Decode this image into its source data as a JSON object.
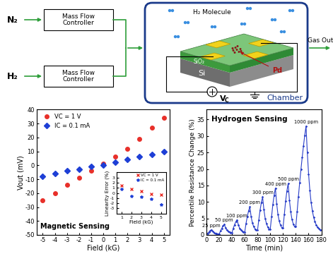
{
  "diagram": {
    "inlets": [
      {
        "gas": "N₂",
        "controller": "Mass Flow\nController"
      },
      {
        "gas": "H₂",
        "controller": "Mass Flow\nController"
      }
    ],
    "outlet": "Gas Out",
    "chamber": "Chamber",
    "molecule_label": "H₂ Molecule",
    "layers": {
      "substrate": "Si",
      "oxide": "SiO₂",
      "catalyst": "Pd"
    },
    "source": {
      "symbol": "V",
      "subscript": "C"
    }
  },
  "chart_data": [
    {
      "type": "scatter",
      "xlabel": "Field (kG)",
      "ylabel": "Vout (mV)",
      "annotation": "Magnetic Sensing",
      "xlim": [
        -5.5,
        5.5
      ],
      "xticks": [
        -5,
        -4,
        -3,
        -2,
        -1,
        0,
        1,
        2,
        3,
        4,
        5
      ],
      "ylim": [
        -50,
        40
      ],
      "yticks": [
        -50,
        -40,
        -30,
        -20,
        -10,
        0,
        10,
        20,
        30,
        40
      ],
      "legend": "upper left",
      "x": [
        -5,
        -4,
        -3,
        -2,
        -1,
        0,
        1,
        2,
        3,
        4,
        5
      ],
      "series": [
        {
          "name": "VC = 1 V",
          "color": "#e8302a",
          "marker": "circle",
          "values": [
            -25,
            -20,
            -14,
            -9,
            -4,
            1,
            6,
            12,
            19,
            27,
            34
          ]
        },
        {
          "name": "IC = 0.1 mA",
          "color": "#1e3fd6",
          "marker": "diamond",
          "values": [
            -8,
            -6,
            -4,
            -3,
            -1,
            0,
            2,
            4,
            6,
            8,
            10
          ]
        }
      ],
      "inset": {
        "type": "scatter",
        "xlabel": "Field (kG)",
        "ylabel": "Linearity Error (%)",
        "xlim": [
          0.5,
          5.5
        ],
        "xticks": [
          1,
          2,
          3,
          4,
          5
        ],
        "ylim": [
          -4,
          4
        ],
        "yticks": [
          -3,
          -2,
          -1,
          0,
          1,
          2,
          3
        ],
        "legend": "upper right",
        "x": [
          1,
          2,
          3,
          4,
          5
        ],
        "series": [
          {
            "name": "VC = 1 V",
            "color": "#e8302a",
            "marker": "x",
            "values": [
              1.5,
              0.7,
              0.3,
              -0.2,
              -0.3
            ]
          },
          {
            "name": "IC = 0.1 mA",
            "color": "#1e3fd6",
            "marker": "star",
            "values": [
              0.8,
              -0.6,
              -0.8,
              -1.2,
              -2.2
            ]
          }
        ]
      }
    },
    {
      "type": "line",
      "xlabel": "Time (min)",
      "ylabel": "Percentile Resistance Change (%)",
      "annotation": "Hydrogen Sensing",
      "xlim": [
        0,
        180
      ],
      "xticks": [
        0,
        20,
        40,
        60,
        80,
        100,
        120,
        140,
        160,
        180
      ],
      "ylim": [
        0,
        38
      ],
      "yticks": [
        0,
        5,
        10,
        15,
        20,
        25,
        30,
        35
      ],
      "x": [
        0,
        2,
        4,
        6,
        8,
        10,
        12,
        14,
        16,
        18,
        20,
        22,
        24,
        26,
        28,
        30,
        32,
        34,
        36,
        38,
        40,
        42,
        44,
        46,
        48,
        50,
        52,
        54,
        56,
        58,
        60,
        62,
        64,
        66,
        68,
        70,
        72,
        74,
        76,
        78,
        80,
        82,
        84,
        86,
        88,
        90,
        92,
        94,
        96,
        98,
        100,
        102,
        104,
        106,
        108,
        110,
        112,
        114,
        116,
        118,
        120,
        122,
        124,
        126,
        128,
        130,
        132,
        134,
        136,
        138,
        140,
        142,
        144,
        146,
        148,
        150,
        152,
        154,
        156,
        158,
        160,
        162,
        164,
        166,
        168,
        170,
        172,
        174,
        176,
        178,
        180
      ],
      "series": [
        {
          "color": "#2a3fc8",
          "marker": "diamond",
          "values": [
            0.0,
            0.5,
            0.9,
            1.3,
            1.6,
            1.1,
            0.7,
            0.5,
            0.4,
            0.3,
            0.3,
            1.2,
            2.0,
            2.7,
            3.2,
            2.1,
            1.4,
            1.0,
            0.8,
            0.7,
            0.7,
            2.0,
            3.1,
            4.0,
            4.6,
            3.0,
            2.0,
            1.4,
            1.1,
            0.9,
            0.9,
            3.5,
            5.6,
            7.3,
            8.5,
            5.5,
            3.6,
            2.5,
            1.8,
            1.4,
            1.4,
            4.6,
            7.5,
            9.8,
            11.5,
            7.6,
            5.0,
            3.4,
            2.4,
            1.8,
            1.8,
            5.5,
            9.2,
            12.0,
            14.2,
            9.5,
            6.2,
            4.2,
            2.9,
            2.2,
            2.2,
            6.2,
            10.2,
            13.3,
            15.6,
            10.5,
            7.0,
            4.7,
            3.3,
            2.5,
            2.5,
            7.0,
            11.5,
            15.8,
            19.8,
            23.5,
            27.0,
            30.2,
            33.0,
            25.0,
            18.5,
            13.5,
            9.8,
            7.2,
            5.3,
            4.0,
            3.0,
            2.4,
            1.9,
            1.6,
            1.4
          ]
        }
      ],
      "peak_labels": [
        {
          "text": "25 ppm",
          "x": 8
        },
        {
          "text": "50 ppm",
          "x": 28
        },
        {
          "text": "100 ppm",
          "x": 48
        },
        {
          "text": "200 ppm",
          "x": 68
        },
        {
          "text": "300 ppm",
          "x": 88
        },
        {
          "text": "400 ppm",
          "x": 108
        },
        {
          "text": "500 ppm",
          "x": 128
        },
        {
          "text": "1000 ppm",
          "x": 156
        }
      ]
    }
  ]
}
